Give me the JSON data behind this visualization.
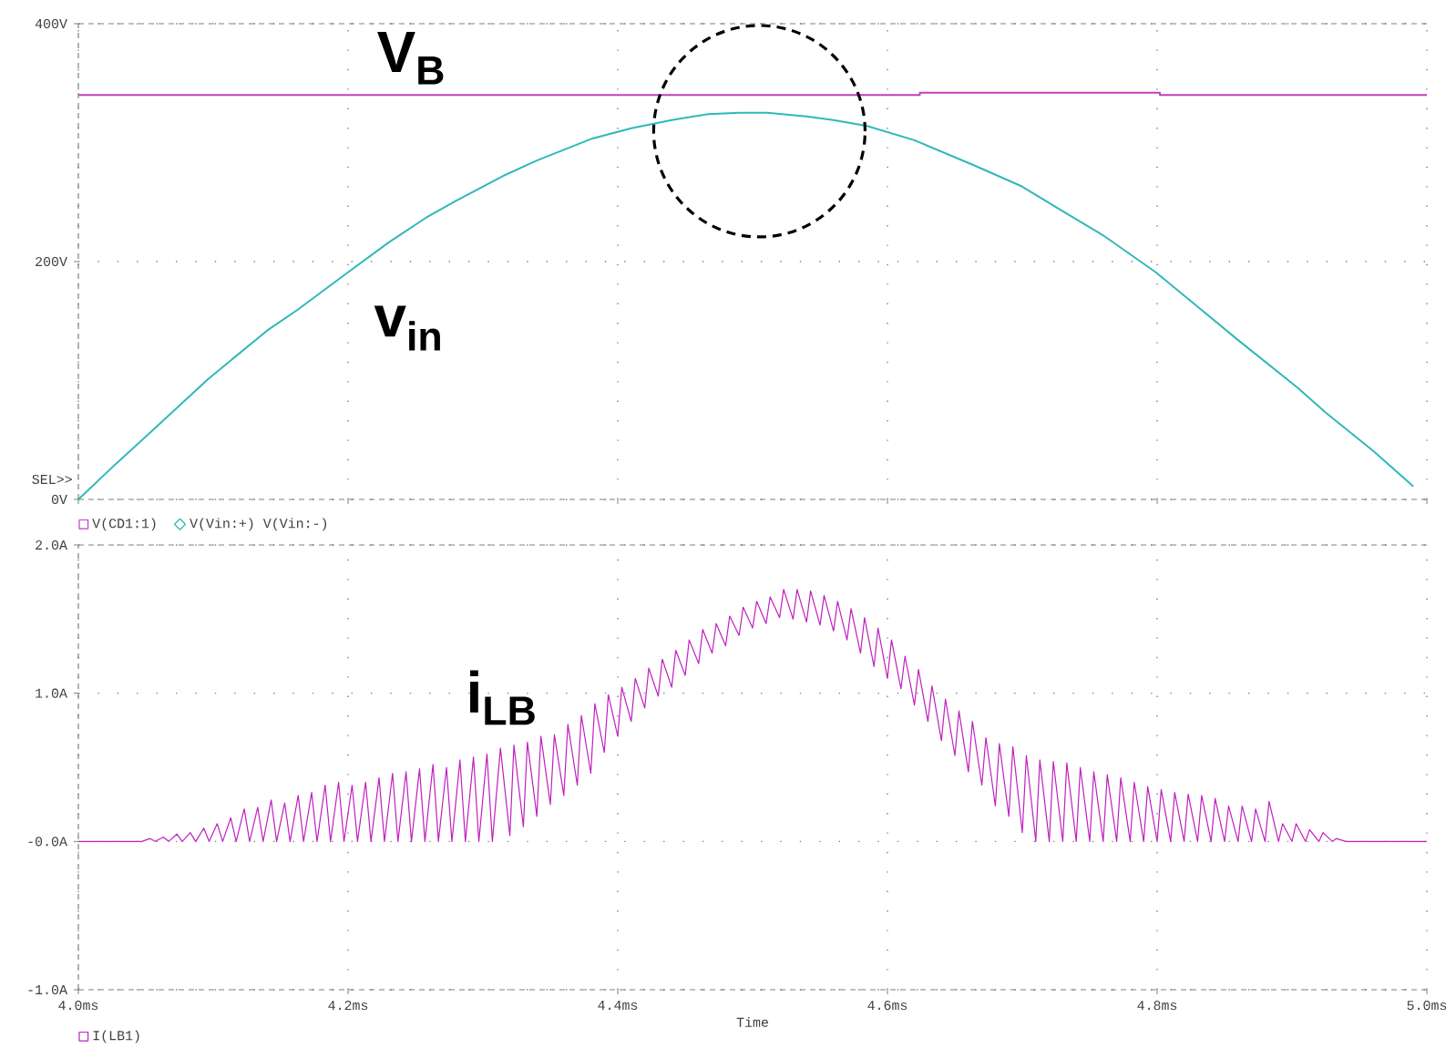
{
  "chart_data": [
    {
      "type": "line",
      "series": [
        {
          "name": "V(CD1:1)",
          "color": "#c040c0",
          "x": [
            4.0,
            4.624,
            4.624,
            4.802,
            4.802,
            5.0
          ],
          "values": [
            340,
            340,
            342,
            342,
            340,
            340
          ]
        },
        {
          "name": "V(Vin:+) V(Vin:-)",
          "color": "#30b8b8",
          "x": [
            4.0,
            4.027,
            4.053,
            4.096,
            4.14,
            4.162,
            4.2,
            4.23,
            4.258,
            4.28,
            4.315,
            4.34,
            4.38,
            4.41,
            4.44,
            4.467,
            4.49,
            4.511,
            4.54,
            4.56,
            4.585,
            4.62,
            4.664,
            4.7,
            4.729,
            4.76,
            4.799,
            4.83,
            4.86,
            4.904,
            4.925,
            4.96,
            4.99
          ],
          "values": [
            0,
            29,
            56,
            101,
            142,
            159,
            191,
            216,
            237,
            251,
            272,
            285,
            303,
            312,
            319,
            324,
            325,
            325,
            322,
            319,
            314,
            302,
            281,
            263,
            243,
            222,
            191,
            162,
            134,
            94,
            73,
            41,
            11
          ]
        }
      ],
      "xlim": [
        4.0,
        5.0
      ],
      "ylim": [
        0,
        400
      ],
      "yticks": [
        {
          "value": 0,
          "label": "0V"
        },
        {
          "value": 200,
          "label": "200V"
        },
        {
          "value": 400,
          "label": "400V"
        }
      ],
      "tick_labels": "y",
      "grid": true,
      "legend": "bottom left",
      "annotations": [
        "V$_{B}$",
        "v$_{in}$",
        "SEL>>"
      ]
    },
    {
      "type": "line",
      "series": [
        {
          "name": "I(LB1)",
          "color": "#c020c0",
          "x": [
            4.0,
            4.047,
            4.053,
            4.057,
            4.063,
            4.067,
            4.073,
            4.077,
            4.083,
            4.087,
            4.093,
            4.097,
            4.103,
            4.107,
            4.113,
            4.117,
            4.123,
            4.127,
            4.133,
            4.137,
            4.143,
            4.147,
            4.153,
            4.157,
            4.163,
            4.167,
            4.173,
            4.177,
            4.183,
            4.187,
            4.193,
            4.197,
            4.203,
            4.207,
            4.213,
            4.217,
            4.223,
            4.227,
            4.233,
            4.237,
            4.243,
            4.247,
            4.253,
            4.257,
            4.263,
            4.267,
            4.273,
            4.277,
            4.283,
            4.287,
            4.293,
            4.297,
            4.303,
            4.307,
            4.313,
            4.32,
            4.323,
            4.33,
            4.333,
            4.34,
            4.343,
            4.35,
            4.353,
            4.36,
            4.363,
            4.37,
            4.373,
            4.38,
            4.383,
            4.39,
            4.393,
            4.4,
            4.403,
            4.41,
            4.413,
            4.42,
            4.423,
            4.43,
            4.433,
            4.44,
            4.443,
            4.45,
            4.453,
            4.46,
            4.463,
            4.47,
            4.473,
            4.48,
            4.483,
            4.49,
            4.493,
            4.5,
            4.503,
            4.51,
            4.513,
            4.52,
            4.523,
            4.53,
            4.533,
            4.54,
            4.543,
            4.55,
            4.553,
            4.56,
            4.563,
            4.57,
            4.573,
            4.58,
            4.583,
            4.59,
            4.593,
            4.6,
            4.603,
            4.61,
            4.613,
            4.62,
            4.623,
            4.63,
            4.633,
            4.64,
            4.643,
            4.65,
            4.653,
            4.66,
            4.663,
            4.67,
            4.673,
            4.68,
            4.683,
            4.69,
            4.693,
            4.7,
            4.703,
            4.71,
            4.713,
            4.72,
            4.723,
            4.73,
            4.733,
            4.74,
            4.743,
            4.75,
            4.753,
            4.76,
            4.763,
            4.77,
            4.773,
            4.78,
            4.783,
            4.79,
            4.793,
            4.8,
            4.803,
            4.81,
            4.813,
            4.82,
            4.823,
            4.83,
            4.833,
            4.84,
            4.843,
            4.85,
            4.853,
            4.86,
            4.863,
            4.87,
            4.873,
            4.88,
            4.883,
            4.89,
            4.893,
            4.9,
            4.903,
            4.91,
            4.913,
            4.92,
            4.923,
            4.93,
            4.933,
            4.94,
            5.0
          ],
          "values": [
            0,
            0,
            0.02,
            0,
            0.03,
            0,
            0.05,
            0,
            0.06,
            0,
            0.09,
            0,
            0.12,
            0,
            0.16,
            0,
            0.22,
            0,
            0.23,
            0,
            0.28,
            0,
            0.26,
            0,
            0.31,
            0,
            0.33,
            0,
            0.38,
            0,
            0.4,
            0,
            0.38,
            0,
            0.4,
            0,
            0.43,
            0,
            0.46,
            0,
            0.47,
            0,
            0.49,
            0,
            0.52,
            0,
            0.5,
            0,
            0.55,
            0,
            0.57,
            0,
            0.59,
            0,
            0.63,
            0.04,
            0.65,
            0.1,
            0.67,
            0.17,
            0.71,
            0.25,
            0.72,
            0.31,
            0.79,
            0.38,
            0.85,
            0.46,
            0.93,
            0.6,
            0.99,
            0.71,
            1.04,
            0.81,
            1.1,
            0.9,
            1.17,
            0.98,
            1.23,
            1.04,
            1.29,
            1.12,
            1.36,
            1.2,
            1.43,
            1.27,
            1.47,
            1.32,
            1.52,
            1.39,
            1.58,
            1.44,
            1.62,
            1.47,
            1.65,
            1.51,
            1.7,
            1.5,
            1.7,
            1.48,
            1.69,
            1.46,
            1.66,
            1.42,
            1.62,
            1.36,
            1.57,
            1.27,
            1.51,
            1.18,
            1.44,
            1.1,
            1.36,
            1.03,
            1.25,
            0.92,
            1.16,
            0.81,
            1.05,
            0.68,
            0.96,
            0.58,
            0.88,
            0.47,
            0.81,
            0.38,
            0.7,
            0.24,
            0.66,
            0.17,
            0.64,
            0.06,
            0.58,
            0,
            0.55,
            0,
            0.54,
            0,
            0.53,
            0,
            0.5,
            0,
            0.47,
            0,
            0.45,
            0,
            0.43,
            0,
            0.4,
            0,
            0.37,
            0,
            0.35,
            0,
            0.33,
            0,
            0.32,
            0,
            0.31,
            0,
            0.29,
            0,
            0.24,
            0,
            0.24,
            0,
            0.22,
            0,
            0.27,
            0,
            0.12,
            0,
            0.12,
            0,
            0.08,
            0,
            0.06,
            0,
            0.02,
            0,
            0
          ]
        }
      ],
      "xlim": [
        4.0,
        5.0
      ],
      "xticks": [
        {
          "value": 4.0,
          "label": "4.0ms"
        },
        {
          "value": 4.2,
          "label": "4.2ms"
        },
        {
          "value": 4.4,
          "label": "4.4ms"
        },
        {
          "value": 4.6,
          "label": "4.6ms"
        },
        {
          "value": 4.8,
          "label": "4.8ms"
        },
        {
          "value": 5.0,
          "label": "5.0ms"
        }
      ],
      "xlabel": "Time",
      "ylim": [
        -1.0,
        2.0
      ],
      "yticks": [
        {
          "value": -1.0,
          "label": "-1.0A"
        },
        {
          "value": 0,
          "label": "-0.0A"
        },
        {
          "value": 1.0,
          "label": "1.0A"
        },
        {
          "value": 2.0,
          "label": "2.0A"
        }
      ],
      "grid": true,
      "legend": "bottom left",
      "annotations": [
        "i$_{LB}$"
      ]
    }
  ]
}
